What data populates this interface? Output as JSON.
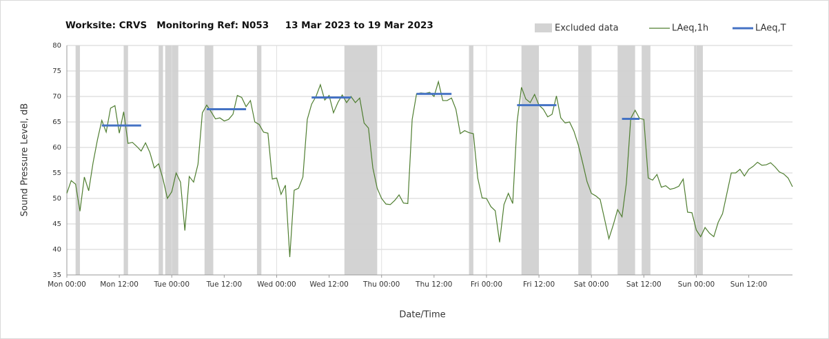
{
  "chart_data": {
    "type": "line",
    "title": "Worksite: CRVS   Monitoring Ref: N053     13 Mar 2023 to 19 Mar 2023",
    "x_label": "Date/Time",
    "y_label": "Sound Pressure Level, dB",
    "xlim": [
      0,
      166
    ],
    "xticks": [
      {
        "value": 0,
        "label": "Mon 00:00"
      },
      {
        "value": 12,
        "label": "Mon 12:00"
      },
      {
        "value": 24,
        "label": "Tue 00:00"
      },
      {
        "value": 36,
        "label": "Tue 12:00"
      },
      {
        "value": 48,
        "label": "Wed 00:00"
      },
      {
        "value": 60,
        "label": "Wed 12:00"
      },
      {
        "value": 72,
        "label": "Thu 00:00"
      },
      {
        "value": 84,
        "label": "Thu 12:00"
      },
      {
        "value": 96,
        "label": "Fri 00:00"
      },
      {
        "value": 108,
        "label": "Fri 12:00"
      },
      {
        "value": 120,
        "label": "Sat 00:00"
      },
      {
        "value": 132,
        "label": "Sat 12:00"
      },
      {
        "value": 144,
        "label": "Sun 00:00"
      },
      {
        "value": 156,
        "label": "Sun 12:00"
      }
    ],
    "ylim": [
      35,
      80
    ],
    "yticks": [
      35,
      40,
      45,
      50,
      55,
      60,
      65,
      70,
      75,
      80
    ],
    "grid": true,
    "excluded": {
      "name": "Excluded data",
      "color": "#d3d3d3",
      "ranges": [
        [
          2,
          3
        ],
        [
          13,
          14
        ],
        [
          21,
          22
        ],
        [
          22.5,
          25.5
        ],
        [
          31.5,
          33.5
        ],
        [
          43.5,
          44.5
        ],
        [
          63.5,
          71
        ],
        [
          92,
          93
        ],
        [
          104,
          108
        ],
        [
          117,
          120
        ],
        [
          126,
          130
        ],
        [
          131.5,
          133.5
        ],
        [
          143.5,
          145.5
        ]
      ]
    },
    "series": [
      {
        "name": "LAeq,1h",
        "color": "#4e7d2f",
        "x": [
          0,
          1,
          2,
          3,
          4,
          5,
          6,
          7,
          8,
          9,
          10,
          11,
          12,
          13,
          14,
          15,
          16,
          17,
          18,
          19,
          20,
          21,
          22,
          23,
          24,
          25,
          26,
          27,
          28,
          29,
          30,
          31,
          32,
          33,
          34,
          35,
          36,
          37,
          38,
          39,
          40,
          41,
          42,
          43,
          44,
          45,
          46,
          47,
          48,
          49,
          50,
          51,
          52,
          53,
          54,
          55,
          56,
          57,
          58,
          59,
          60,
          61,
          62,
          63,
          64,
          65,
          66,
          67,
          68,
          69,
          70,
          71,
          72,
          73,
          74,
          75,
          76,
          77,
          78,
          79,
          80,
          81,
          82,
          83,
          84,
          85,
          86,
          87,
          88,
          89,
          90,
          91,
          92,
          93,
          94,
          95,
          96,
          97,
          98,
          99,
          100,
          101,
          102,
          103,
          104,
          105,
          106,
          107,
          108,
          109,
          110,
          111,
          112,
          113,
          114,
          115,
          116,
          117,
          118,
          119,
          120,
          121,
          122,
          123,
          124,
          125,
          126,
          127,
          128,
          129,
          130,
          131,
          132,
          133,
          134,
          135,
          136,
          137,
          138,
          139,
          140,
          141,
          142,
          143,
          144,
          145,
          146,
          147,
          148,
          149,
          150,
          151,
          152,
          153,
          154,
          155,
          156,
          157,
          158,
          159,
          160,
          161,
          162,
          163,
          164,
          165,
          166
        ],
        "values": [
          51,
          53.5,
          52.8,
          47.5,
          54.2,
          51.5,
          57,
          61.5,
          65.3,
          63,
          67.7,
          68.2,
          62.8,
          67,
          60.8,
          61,
          60.2,
          59.3,
          60.9,
          59,
          56,
          56.8,
          53.8,
          50,
          51.3,
          55,
          53.2,
          43.7,
          54.3,
          53.2,
          56.7,
          66.8,
          68.3,
          67,
          65.6,
          65.8,
          65.2,
          65.5,
          66.5,
          70.2,
          69.8,
          68,
          69.2,
          65,
          64.5,
          63,
          62.8,
          53.8,
          54,
          50.8,
          52.6,
          38.5,
          51.6,
          52,
          54.2,
          65.5,
          68.5,
          70,
          72.3,
          69.3,
          70.2,
          66.8,
          68.8,
          70.3,
          68.8,
          70,
          68.8,
          69.7,
          64.8,
          63.8,
          56,
          52,
          50,
          48.9,
          48.8,
          49.6,
          50.7,
          49.1,
          49,
          65.5,
          70.5,
          70.7,
          70.6,
          70.8,
          70,
          72.9,
          69.2,
          69.2,
          69.7,
          67.5,
          62.7,
          63.3,
          62.9,
          62.7,
          54,
          50.1,
          50,
          48.4,
          47.6,
          41.4,
          48.8,
          51,
          49,
          65,
          71.8,
          69.5,
          68.8,
          70.4,
          68.3,
          67.5,
          66,
          66.5,
          70.1,
          65.8,
          64.8,
          65,
          63.2,
          60.5,
          57,
          53.3,
          51,
          50.5,
          49.8,
          46,
          42.1,
          44.8,
          47.8,
          46.4,
          53,
          65.7,
          67.3,
          65.7,
          65.5,
          54,
          53.6,
          54.7,
          52.2,
          52.5,
          51.8,
          52,
          52.4,
          53.8,
          47.3,
          47.2,
          43.8,
          42.5,
          44.3,
          43.2,
          42.5,
          45.3,
          47,
          51,
          55,
          55,
          55.7,
          54.4,
          55.7,
          56.3,
          57.1,
          56.5,
          56.6,
          57,
          56.2,
          55.2,
          54.8,
          54,
          52.3
        ]
      },
      {
        "name": "LAeq,T",
        "color": "#4472c4",
        "segments": [
          {
            "x": [
              8,
              17
            ],
            "value": 64.3
          },
          {
            "x": [
              32,
              41
            ],
            "value": 67.5
          },
          {
            "x": [
              56,
              65
            ],
            "value": 69.8
          },
          {
            "x": [
              80,
              88
            ],
            "value": 70.5
          },
          {
            "x": [
              103,
              112
            ],
            "value": 68.3
          },
          {
            "x": [
              127,
              131
            ],
            "value": 65.6
          }
        ]
      }
    ]
  }
}
